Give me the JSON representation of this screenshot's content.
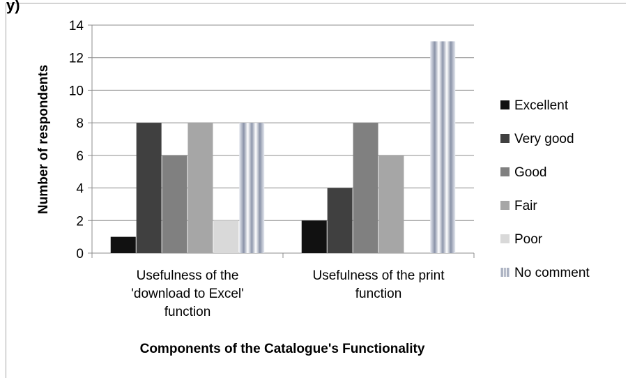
{
  "cut_label": "y)",
  "chart_data": {
    "type": "bar",
    "title": "",
    "ylabel": "Number of respondents",
    "xlabel": "Components of the Catalogue's Functionality",
    "ylim": [
      0,
      14
    ],
    "yticks": [
      0,
      2,
      4,
      6,
      8,
      10,
      12,
      14
    ],
    "grid": true,
    "legend_position": "right",
    "categories": [
      [
        "Usefulness of the",
        "'download to Excel'",
        "function"
      ],
      [
        "Usefulness of the print",
        "function"
      ]
    ],
    "series": [
      {
        "name": "Excellent",
        "color": "#111111",
        "values": [
          1,
          2
        ]
      },
      {
        "name": "Very good",
        "color": "#404040",
        "values": [
          8,
          4
        ]
      },
      {
        "name": "Good",
        "color": "#808080",
        "values": [
          6,
          8
        ]
      },
      {
        "name": "Fair",
        "color": "#a6a6a6",
        "values": [
          8,
          6
        ]
      },
      {
        "name": "Poor",
        "color": "#d9d9d9",
        "values": [
          2,
          0
        ]
      },
      {
        "name": "No comment",
        "color": "#9aa3b5",
        "pattern": "cylinder",
        "values": [
          8,
          13
        ]
      }
    ]
  }
}
